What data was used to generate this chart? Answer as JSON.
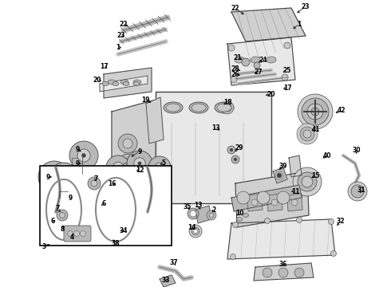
{
  "bg": "#ffffff",
  "lc": "#444444",
  "tc": "#000000",
  "fs": 5.5,
  "fig_w": 4.9,
  "fig_h": 3.6,
  "dpi": 100
}
